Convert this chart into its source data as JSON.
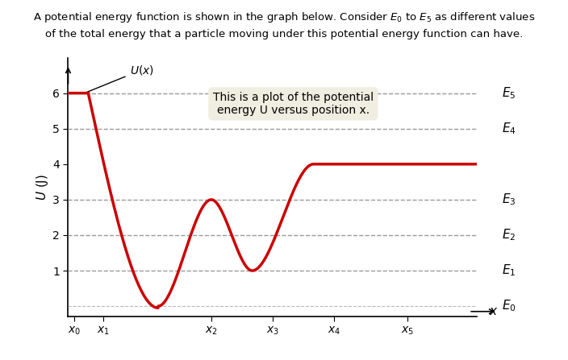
{
  "title_text": "A potential energy function is shown in the graph below. Consider $E_0$ to $E_5$ as different values\nof the total energy that a particle moving under this potential energy function can have.",
  "ylabel": "U (J)",
  "xlabel": "x",
  "annotation_box": "This is a plot of the potential\nenergy U versus position x.",
  "curve_color": "#cc0000",
  "dashed_color": "#888888",
  "background_color": "#ffffff",
  "energy_labels": [
    "E_0",
    "E_1",
    "E_2",
    "E_3",
    "E_4",
    "E_5"
  ],
  "energy_levels": [
    0,
    1,
    2,
    3,
    5,
    6
  ],
  "yticks": [
    1,
    2,
    3,
    4,
    5,
    6
  ],
  "x_labels": [
    "x_0",
    "x_1",
    "x_2",
    "x_3",
    "x_4",
    "x_5"
  ],
  "xlim": [
    0,
    10
  ],
  "ylim": [
    -0.3,
    7.0
  ]
}
